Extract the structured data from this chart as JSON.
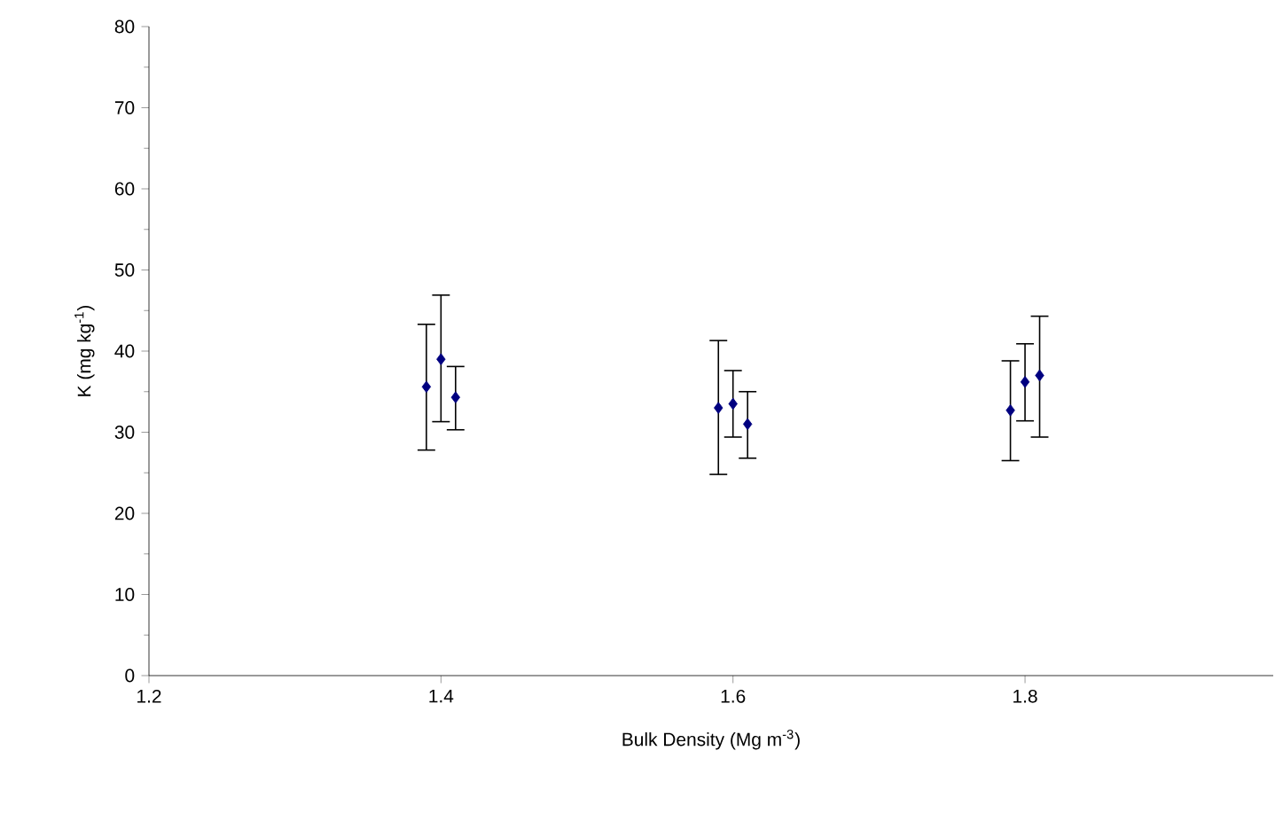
{
  "chart_data": {
    "type": "scatter",
    "xlabel": "Bulk Density (Mg m$^{-3}$)",
    "ylabel": "K (mg kg$^{-1}$)",
    "x": [
      1.39,
      1.4,
      1.41,
      1.59,
      1.6,
      1.61,
      1.79,
      1.8,
      1.81
    ],
    "values": [
      35.6,
      39.0,
      34.3,
      33.0,
      33.5,
      31.0,
      32.7,
      36.2,
      37.0
    ],
    "errors": [
      [
        27.8,
        43.3
      ],
      [
        31.3,
        46.9
      ],
      [
        30.3,
        38.1
      ],
      [
        24.8,
        41.3
      ],
      [
        29.4,
        37.6
      ],
      [
        26.8,
        35.0
      ],
      [
        26.5,
        38.8
      ],
      [
        31.4,
        40.9
      ],
      [
        29.4,
        44.3
      ]
    ],
    "color": "#000080",
    "marker": "diamond",
    "grid": false,
    "xlim": [
      1.2,
      1.97
    ],
    "xticks": [
      1.2,
      1.4,
      1.6,
      1.8
    ],
    "ylim": [
      0,
      80
    ],
    "yticks": [
      0,
      10,
      20,
      30,
      40,
      50,
      60,
      70,
      80
    ]
  }
}
